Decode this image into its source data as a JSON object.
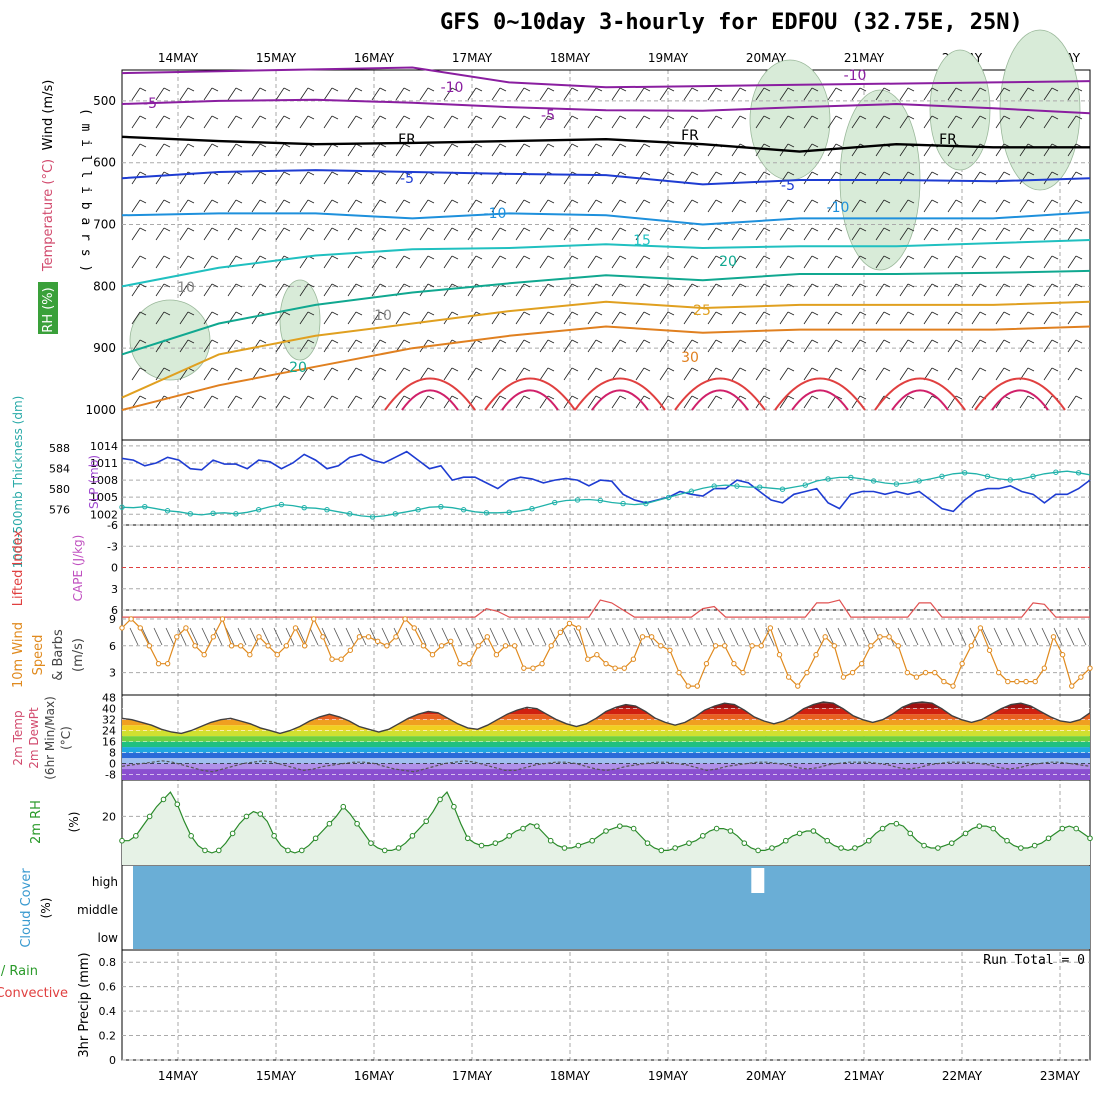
{
  "title": "GFS 0~10day 3-hourly for EDFOU (32.75E, 25N)",
  "days": [
    "14MAY",
    "15MAY",
    "16MAY",
    "17MAY",
    "18MAY",
    "19MAY",
    "20MAY",
    "21MAY",
    "22MAY",
    "23MAY"
  ],
  "colors": {
    "grid": "#aaaaaa",
    "rh_fill": "#d8ebd8",
    "thickness": "#20b2aa",
    "slp": "#1e3cd2",
    "wind10": "#e08a1e",
    "temp2m_line": "#404040",
    "rh2m": "#2a8a2a",
    "cloud": "#6aaed6",
    "li_zero": "#e04040",
    "cape": "#e05050"
  },
  "chart_data": [
    {
      "type": "line",
      "panel": "upper-air",
      "ylabel_lines": [
        "Wind (m/s)",
        "Temperature (°C)",
        "RH (%)"
      ],
      "ylabel_axis": "( m i l l i b a r s )",
      "y_ticks": [
        500,
        600,
        700,
        800,
        900,
        1000
      ],
      "ylim": [
        450,
        1000
      ],
      "isotherm_labels": [
        "-10",
        "-10",
        "-5",
        "-5",
        "FR",
        "FR",
        "FR",
        "-5",
        "-5",
        "-10",
        "-10",
        "15",
        "20",
        "25",
        "30",
        "20",
        "10",
        "10"
      ],
      "isotherms": [
        {
          "name": "-10",
          "color": "#8a1ea0",
          "p": [
            455,
            452,
            449,
            446,
            470,
            478,
            476,
            474,
            472,
            470,
            468
          ]
        },
        {
          "name": "-5",
          "color": "#8a1ea0",
          "p": [
            505,
            500,
            498,
            503,
            510,
            515,
            516,
            510,
            505,
            512,
            520
          ]
        },
        {
          "name": "FR",
          "color": "#000000",
          "p": [
            558,
            565,
            570,
            568,
            565,
            562,
            570,
            582,
            570,
            575,
            575
          ]
        },
        {
          "name": "-5",
          "color": "#1e3cd2",
          "p": [
            625,
            615,
            612,
            615,
            618,
            620,
            635,
            628,
            628,
            630,
            625
          ]
        },
        {
          "name": "10",
          "color": "#1e90dc",
          "p": [
            685,
            682,
            682,
            690,
            682,
            685,
            700,
            690,
            690,
            690,
            680
          ]
        },
        {
          "name": "15",
          "color": "#20c0c0",
          "p": [
            800,
            770,
            750,
            740,
            738,
            732,
            738,
            735,
            735,
            730,
            725
          ]
        },
        {
          "name": "20",
          "color": "#10a890",
          "p": [
            910,
            860,
            830,
            810,
            795,
            782,
            790,
            780,
            780,
            778,
            775
          ]
        },
        {
          "name": "25",
          "color": "#e0a020",
          "p": [
            980,
            910,
            880,
            860,
            840,
            825,
            835,
            830,
            830,
            830,
            825
          ]
        },
        {
          "name": "30",
          "color": "#e08020",
          "p": [
            1000,
            960,
            930,
            900,
            880,
            865,
            875,
            870,
            870,
            870,
            865
          ]
        }
      ]
    },
    {
      "type": "line",
      "panel": "thickness-slp",
      "ylabel_left": "1000-500mb Thickness (dm)",
      "ylabel_right": "SLP (mb)",
      "left_ticks": [
        "588",
        "584",
        "580",
        "576"
      ],
      "right_ticks": [
        "1014",
        "1011",
        "1008",
        "1005",
        "1002"
      ],
      "series": [
        {
          "name": "SLP (mb)",
          "values": [
            1011.8,
            1011.5,
            1010.5,
            1011.0,
            1012.0,
            1011.5,
            1010.0,
            1009.8,
            1011.5,
            1010.8,
            1010.8,
            1010.0,
            1011.5,
            1011.2,
            1010.0,
            1011.0,
            1012.5,
            1011.5,
            1010.0,
            1010.5,
            1012.0,
            1012.5,
            1011.5,
            1011.0,
            1012.0,
            1013.0,
            1011.5,
            1010.0,
            1010.5,
            1008.0,
            1008.5,
            1008.5,
            1007.5,
            1006.5,
            1008.0,
            1008.5,
            1008.2,
            1007.5,
            1008.0,
            1008.3,
            1008.0,
            1007.0,
            1008.0,
            1007.8,
            1005.5,
            1004.5,
            1004.0,
            1004.5,
            1005.0,
            1006.0,
            1005.5,
            1005.2,
            1006.5,
            1006.5,
            1008.0,
            1007.5,
            1006.0,
            1004.5,
            1004.0,
            1005.5,
            1006.0,
            1006.5,
            1004.0,
            1003.0,
            1005.5,
            1006.0,
            1006.0,
            1005.5,
            1006.0,
            1005.5,
            1006.0,
            1004.5,
            1003.0,
            1002.5,
            1004.5,
            1006.0,
            1006.5,
            1006.5,
            1007.0,
            1006.0,
            1005.5,
            1004.0,
            1005.5,
            1005.5,
            1006.5,
            1008.0
          ]
        },
        {
          "name": "Thickness (dm)",
          "values": [
            576.5,
            576.4,
            576.6,
            576.2,
            575.8,
            575.6,
            575.2,
            575.0,
            575.3,
            575.4,
            575.2,
            575.5,
            576.0,
            576.6,
            577.0,
            576.8,
            576.4,
            576.3,
            576.0,
            575.6,
            575.2,
            574.8,
            574.6,
            574.8,
            575.2,
            575.6,
            576.0,
            576.5,
            576.6,
            576.4,
            576.0,
            575.6,
            575.4,
            575.4,
            575.5,
            575.8,
            576.2,
            576.8,
            577.4,
            577.8,
            577.9,
            578.0,
            577.8,
            577.4,
            577.2,
            577.0,
            577.2,
            577.8,
            578.4,
            579.0,
            579.6,
            580.2,
            580.6,
            580.8,
            580.6,
            580.4,
            580.4,
            580.2,
            580.0,
            580.4,
            580.8,
            581.6,
            582.0,
            582.3,
            582.3,
            582.0,
            581.6,
            581.2,
            581.0,
            581.2,
            581.6,
            582.0,
            582.5,
            583.0,
            583.2,
            583.0,
            582.5,
            582.0,
            581.8,
            582.0,
            582.5,
            583.0,
            583.3,
            583.5,
            583.2,
            582.8
          ]
        }
      ]
    },
    {
      "type": "line",
      "panel": "lifted-index-cape",
      "ylabel_left": "Lifted Index",
      "ylabel_right": "CAPE (J/kg)",
      "y_ticks": [
        "-6",
        "-3",
        "0",
        "3",
        "6"
      ],
      "series": [
        {
          "name": "Lifted Index",
          "values": [
            7,
            7,
            7,
            7,
            7,
            7,
            7,
            7,
            7,
            7,
            7,
            7,
            7,
            7,
            7,
            7,
            7,
            7,
            7,
            7,
            7,
            7,
            7,
            7,
            7,
            7,
            7,
            7,
            7,
            7,
            7,
            7,
            5.8,
            6.2,
            7,
            7,
            7,
            7,
            7,
            7,
            7,
            7,
            4.6,
            5,
            6,
            7,
            7,
            7,
            7,
            7,
            7,
            5.8,
            5.5,
            7,
            7,
            7,
            7,
            7,
            7,
            7,
            7,
            5,
            5,
            4.6,
            7,
            7,
            7,
            7,
            7,
            7,
            5,
            5,
            7,
            7,
            7,
            7,
            7,
            7,
            7,
            7,
            5,
            5.2,
            7,
            7,
            7,
            7
          ]
        }
      ]
    },
    {
      "type": "line",
      "panel": "wind-10m",
      "ylabel_lines": [
        "10m Wind",
        "Speed",
        "& Barbs",
        "(m/s)"
      ],
      "y_ticks": [
        "9",
        "6",
        "3"
      ],
      "ylim": [
        0.5,
        10
      ],
      "series": [
        {
          "name": "10m Wind Speed",
          "values": [
            8,
            9,
            8,
            6,
            4,
            4,
            7,
            8,
            6,
            5,
            7,
            9,
            6,
            6,
            5,
            7,
            6,
            5,
            6,
            8,
            6,
            9,
            7,
            4.5,
            4.5,
            5.5,
            7,
            7,
            6.5,
            6,
            7,
            9,
            8,
            6,
            5,
            6,
            6.5,
            4,
            4,
            6,
            7,
            5,
            6,
            6,
            3.5,
            3.5,
            4,
            6,
            7.5,
            8.5,
            8,
            4.5,
            5,
            4,
            3.5,
            3.5,
            4.5,
            7,
            7,
            6,
            5.5,
            3,
            1.5,
            1.5,
            4,
            6,
            6,
            4,
            3,
            6,
            6,
            8,
            5,
            2.5,
            1.5,
            3,
            5,
            7,
            6,
            2.5,
            3,
            4,
            6,
            7,
            7,
            6,
            3,
            2.5,
            3,
            3,
            2,
            1.5,
            4,
            6,
            8,
            5.5,
            3,
            2,
            2,
            2,
            2,
            3.5,
            7,
            5,
            1.5,
            2.5,
            3.5
          ]
        }
      ]
    },
    {
      "type": "area",
      "panel": "temp-2m",
      "ylabel_lines": [
        "2m Temp",
        "2m DewPt",
        "(6hr Min/Max)",
        "(°C)"
      ],
      "y_ticks": [
        "48",
        "40",
        "32",
        "24",
        "16",
        "8",
        "0",
        "-8"
      ],
      "series": [
        {
          "name": "2m Temp",
          "values": [
            33,
            32,
            30,
            28,
            25,
            23,
            22,
            24,
            27,
            30,
            32,
            33,
            31,
            29,
            26,
            24,
            22,
            24,
            27,
            31,
            34,
            36,
            34,
            31,
            27,
            25,
            23,
            25,
            29,
            33,
            36,
            38,
            37,
            33,
            29,
            26,
            25,
            28,
            32,
            36,
            39,
            41,
            40,
            36,
            32,
            29,
            27,
            29,
            33,
            38,
            41,
            43,
            42,
            38,
            33,
            30,
            28,
            30,
            34,
            39,
            42,
            44,
            43,
            39,
            34,
            31,
            29,
            31,
            35,
            40,
            43,
            45,
            44,
            40,
            35,
            32,
            30,
            32,
            36,
            41,
            44,
            45,
            44,
            40,
            35,
            32,
            30,
            32,
            36,
            40,
            43,
            44,
            42,
            38,
            34,
            31,
            30,
            32,
            37
          ]
        },
        {
          "name": "2m DewPt",
          "values": [
            -2,
            -1,
            0,
            1,
            2,
            1,
            -1,
            -3,
            -5,
            -6,
            -4,
            -2,
            0,
            1,
            2,
            1,
            -1,
            -3,
            -5,
            -4,
            -2,
            -1,
            0,
            1,
            1,
            0,
            -2,
            -4,
            -5,
            -6,
            -4,
            -2,
            0,
            1,
            2,
            1,
            -1,
            -3,
            -5,
            -5,
            -3,
            -1,
            0,
            1,
            1,
            0,
            -2,
            -4,
            -5,
            -4,
            -2,
            -1,
            0,
            1,
            1,
            0,
            -1,
            -3,
            -5,
            -4,
            -2,
            -1,
            0,
            1,
            1,
            0,
            -1,
            -3,
            -4,
            -3,
            -1,
            0,
            1,
            1,
            1,
            0,
            -1,
            -3,
            -4,
            -3,
            -1,
            0,
            1,
            1,
            1,
            0,
            -1,
            -3,
            -4,
            -3,
            -1,
            0,
            1,
            1,
            0,
            -1,
            -2
          ]
        }
      ]
    },
    {
      "type": "area",
      "panel": "rh-2m",
      "ylabel_lines": [
        "2m RH",
        "(%)"
      ],
      "y_ticks": [
        "20"
      ],
      "series": [
        {
          "name": "2m RH",
          "values": [
            10,
            10,
            12,
            16,
            20,
            24,
            27,
            30,
            25,
            18,
            12,
            8,
            6,
            5,
            6,
            9,
            13,
            17,
            20,
            22,
            21,
            18,
            12,
            8,
            6,
            5,
            6,
            8,
            11,
            14,
            17,
            20,
            24,
            21,
            17,
            13,
            9,
            7,
            6,
            6,
            7,
            9,
            12,
            15,
            18,
            22,
            27,
            30,
            24,
            17,
            11,
            9,
            8,
            8,
            9,
            10,
            12,
            14,
            15,
            17,
            16,
            13,
            10,
            8,
            7,
            7,
            8,
            9,
            10,
            12,
            14,
            15,
            16,
            16,
            15,
            12,
            9,
            7,
            6,
            6,
            7,
            8,
            9,
            10,
            12,
            14,
            15,
            15,
            14,
            12,
            9,
            7,
            6,
            6,
            7,
            8,
            10,
            12,
            13,
            14,
            14,
            12,
            10,
            8,
            7,
            6,
            7,
            8,
            10,
            13,
            15,
            17,
            17,
            16,
            13,
            10,
            8,
            7,
            7,
            8,
            9,
            11,
            13,
            15,
            16,
            16,
            15,
            12,
            10,
            8,
            7,
            7,
            8,
            9,
            11,
            13,
            15,
            16,
            15,
            13,
            11
          ]
        }
      ]
    },
    {
      "type": "heatmap",
      "panel": "cloud-cover",
      "ylabel_lines": [
        "Cloud Cover",
        "(%)"
      ],
      "levels": [
        "high",
        "middle",
        "low"
      ],
      "gap_level": "high",
      "gap_day_fraction": 6.35
    },
    {
      "type": "bar",
      "panel": "precip",
      "ylabel_lines": [
        "Total / Rain",
        "Convective",
        "3hr Precip (mm)"
      ],
      "y_ticks": [
        "0.8",
        "0.6",
        "0.4",
        "0.2",
        "0"
      ],
      "ylim": [
        0,
        0.9
      ],
      "annotation": "Run Total = 0",
      "values": []
    }
  ]
}
